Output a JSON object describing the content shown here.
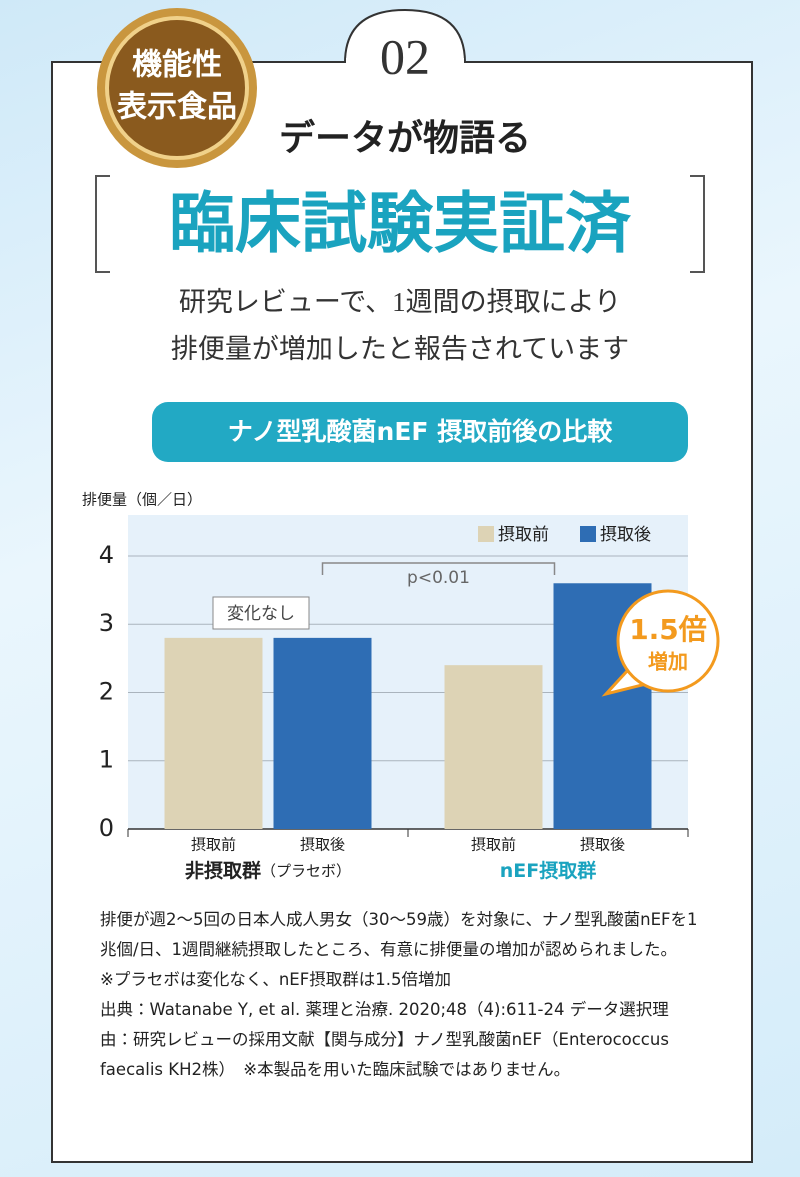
{
  "header": {
    "number": "02",
    "badge": [
      "機能性",
      "表示食品"
    ],
    "lead": "データが物語る",
    "title": "臨床試験実証済",
    "subtitle": [
      "研究レビューで、1週間の摂取により",
      "排便量が増加したと報告されています"
    ]
  },
  "chart_data": {
    "type": "bar",
    "title": "ナノ型乳酸菌nEF 摂取前後の比較",
    "y_label": "排便量（個／日）",
    "categories": [
      "非摂取群",
      "nEF摂取群"
    ],
    "category_notes": [
      "（プラセボ）",
      null
    ],
    "category_colors": [
      "#222222",
      "#1aa3bf"
    ],
    "series": [
      {
        "name": "摂取前",
        "color": "#ddd3b5",
        "values": [
          2.8,
          2.4
        ]
      },
      {
        "name": "摂取後",
        "color": "#2e6db4",
        "values": [
          2.8,
          3.6
        ]
      }
    ],
    "ylim": [
      0,
      4.6
    ],
    "yticks": [
      0,
      1,
      2,
      3,
      4
    ],
    "grid": true,
    "legend": "top-right",
    "annotations": {
      "significance": "p<0.01",
      "no_change": "変化なし",
      "increase": [
        "1.5倍",
        "増加"
      ]
    }
  },
  "footnote": [
    "排便が週2〜5回の日本人成人男女（30〜59歳）を対象に、ナノ型乳酸菌nEFを1兆個/日、1週間継続摂取したところ、有意に排便量の増加が認められました。",
    "※プラセボは変化なく、nEF摂取群は1.5倍増加",
    "出典：Watanabe Y, et al. 薬理と治療. 2020;48（4):611-24 データ選択理由：研究レビューの採用文献【関与成分】ナノ型乳酸菌nEF（Enterococcus faecalis KH2株）　※本製品を用いた臨床試験ではありません。"
  ]
}
